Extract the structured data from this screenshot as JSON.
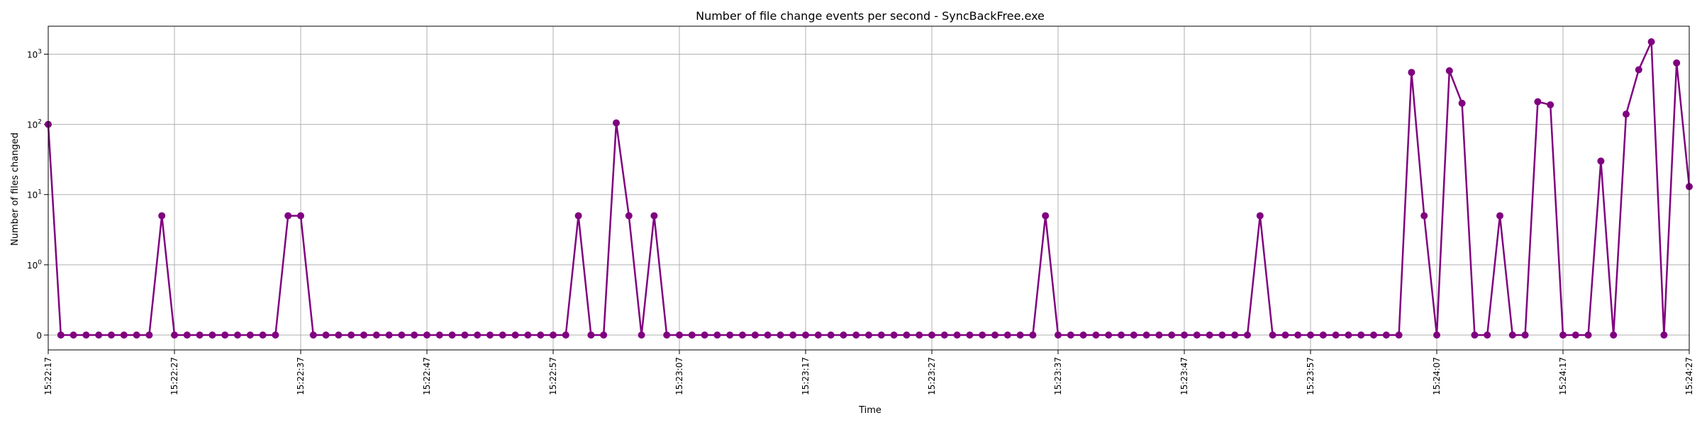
{
  "chart_data": {
    "type": "line",
    "title": "Number of file change events per second - SyncBackFree.exe",
    "xlabel": "Time",
    "ylabel": "Number of files changed",
    "yscale": "symlog",
    "grid": true,
    "legend": "none",
    "color": "#800080",
    "x_start": "15:22:17",
    "x_end": "15:24:27",
    "xticks": [
      "15:22:17",
      "15:22:27",
      "15:22:37",
      "15:22:47",
      "15:22:57",
      "15:23:07",
      "15:23:17",
      "15:23:27",
      "15:23:37",
      "15:23:47",
      "15:23:57",
      "15:24:07",
      "15:24:17",
      "15:24:27"
    ],
    "yticks": [
      {
        "value": 0,
        "label": "0"
      },
      {
        "value": 1,
        "label": "10",
        "exp": "0"
      },
      {
        "value": 10,
        "label": "10",
        "exp": "1"
      },
      {
        "value": 100,
        "label": "10",
        "exp": "2"
      },
      {
        "value": 1000,
        "label": "10",
        "exp": "3"
      }
    ],
    "ylim": [
      0,
      2500
    ],
    "series": [
      {
        "values": [
          100,
          0,
          0,
          0,
          0,
          0,
          0,
          0,
          0,
          5,
          0,
          0,
          0,
          0,
          0,
          0,
          0,
          0,
          0,
          5,
          5,
          0,
          0,
          0,
          0,
          0,
          0,
          0,
          0,
          0,
          0,
          0,
          0,
          0,
          0,
          0,
          0,
          0,
          0,
          0,
          0,
          0,
          5,
          0,
          0,
          105,
          5,
          0,
          5,
          0,
          0,
          0,
          0,
          0,
          0,
          0,
          0,
          0,
          0,
          0,
          0,
          0,
          0,
          0,
          0,
          0,
          0,
          0,
          0,
          0,
          0,
          0,
          0,
          0,
          0,
          0,
          0,
          0,
          0,
          5,
          0,
          0,
          0,
          0,
          0,
          0,
          0,
          0,
          0,
          0,
          0,
          0,
          0,
          0,
          0,
          0,
          5,
          0,
          0,
          0,
          0,
          0,
          0,
          0,
          0,
          0,
          0,
          0,
          550,
          5,
          0,
          580,
          200,
          0,
          0,
          5,
          0,
          0,
          210,
          190,
          0,
          0,
          0,
          30,
          0,
          140,
          600,
          1500,
          0,
          750,
          13
        ]
      }
    ]
  }
}
